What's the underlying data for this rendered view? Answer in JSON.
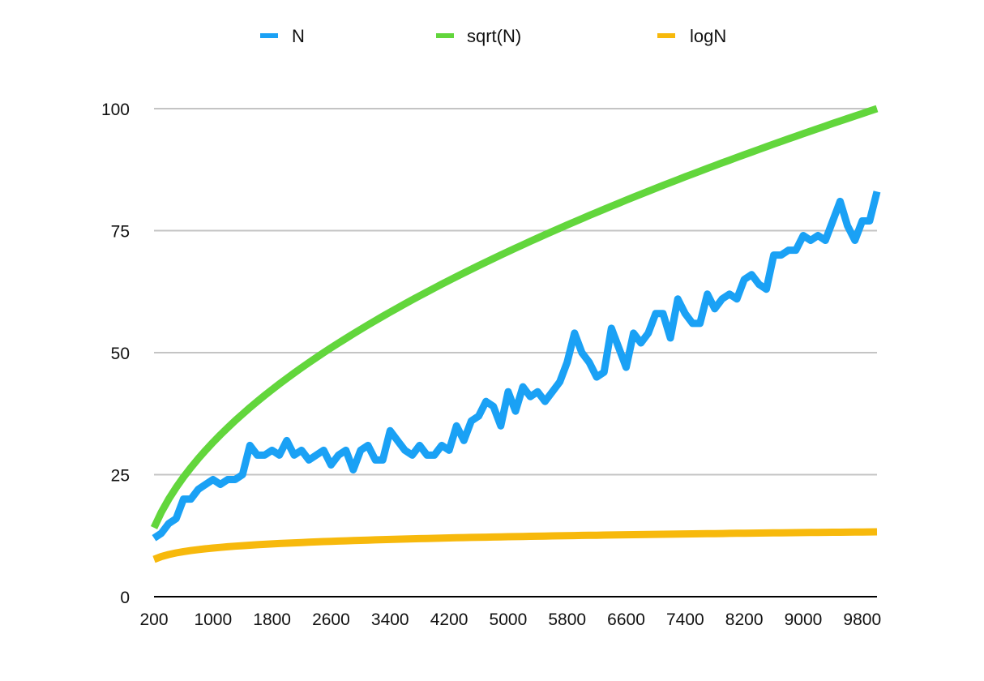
{
  "chart_data": {
    "type": "line",
    "title": "",
    "xlabel": "",
    "ylabel": "",
    "ylim": [
      0,
      100
    ],
    "xlim": [
      200,
      10000
    ],
    "yticks": [
      0,
      25,
      50,
      75,
      100
    ],
    "xticks": [
      "200",
      "1000",
      "1800",
      "2600",
      "3400",
      "4200",
      "5000",
      "5800",
      "6600",
      "7400",
      "8200",
      "9000",
      "9800"
    ],
    "grid": true,
    "legend_position": "top",
    "x": [
      200,
      300,
      400,
      500,
      600,
      700,
      800,
      900,
      1000,
      1100,
      1200,
      1300,
      1400,
      1500,
      1600,
      1700,
      1800,
      1900,
      2000,
      2100,
      2200,
      2300,
      2400,
      2500,
      2600,
      2700,
      2800,
      2900,
      3000,
      3100,
      3200,
      3300,
      3400,
      3500,
      3600,
      3700,
      3800,
      3900,
      4000,
      4100,
      4200,
      4300,
      4400,
      4500,
      4600,
      4700,
      4800,
      4900,
      5000,
      5100,
      5200,
      5300,
      5400,
      5500,
      5600,
      5700,
      5800,
      5900,
      6000,
      6100,
      6200,
      6300,
      6400,
      6500,
      6600,
      6700,
      6800,
      6900,
      7000,
      7100,
      7200,
      7300,
      7400,
      7500,
      7600,
      7700,
      7800,
      7900,
      8000,
      8100,
      8200,
      8300,
      8400,
      8500,
      8600,
      8700,
      8800,
      8900,
      9000,
      9100,
      9200,
      9300,
      9400,
      9500,
      9600,
      9700,
      9800,
      9900,
      10000
    ],
    "series": [
      {
        "name": "N",
        "color": "#1aa1f5",
        "values": [
          12,
          13,
          15,
          16,
          20,
          20,
          22,
          23,
          24,
          23,
          24,
          24,
          25,
          31,
          29,
          29,
          30,
          29,
          32,
          29,
          30,
          28,
          29,
          30,
          27,
          29,
          30,
          26,
          30,
          31,
          28,
          28,
          34,
          32,
          30,
          29,
          31,
          29,
          29,
          31,
          30,
          35,
          32,
          36,
          37,
          40,
          39,
          35,
          42,
          38,
          43,
          41,
          42,
          40,
          42,
          44,
          48,
          54,
          50,
          48,
          45,
          46,
          55,
          51,
          47,
          54,
          52,
          54,
          58,
          58,
          53,
          61,
          58,
          56,
          56,
          62,
          59,
          61,
          62,
          61,
          65,
          66,
          64,
          63,
          70,
          70,
          71,
          71,
          74,
          73,
          74,
          73,
          77,
          81,
          76,
          73,
          77,
          77,
          83
        ]
      },
      {
        "name": "sqrt(N)",
        "color": "#62d63c",
        "values": "sqrt"
      },
      {
        "name": "logN",
        "color": "#f7b90c",
        "values": "log2"
      }
    ]
  }
}
